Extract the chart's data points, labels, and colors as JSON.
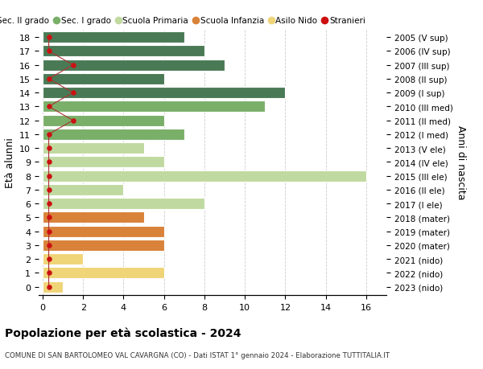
{
  "ages": [
    18,
    17,
    16,
    15,
    14,
    13,
    12,
    11,
    10,
    9,
    8,
    7,
    6,
    5,
    4,
    3,
    2,
    1,
    0
  ],
  "years": [
    "2005 (V sup)",
    "2006 (IV sup)",
    "2007 (III sup)",
    "2008 (II sup)",
    "2009 (I sup)",
    "2010 (III med)",
    "2011 (II med)",
    "2012 (I med)",
    "2013 (V ele)",
    "2014 (IV ele)",
    "2015 (III ele)",
    "2016 (II ele)",
    "2017 (I ele)",
    "2018 (mater)",
    "2019 (mater)",
    "2020 (mater)",
    "2021 (nido)",
    "2022 (nido)",
    "2023 (nido)"
  ],
  "bar_values": [
    7,
    8,
    9,
    6,
    12,
    11,
    6,
    7,
    5,
    6,
    16,
    4,
    8,
    5,
    6,
    6,
    2,
    6,
    1
  ],
  "bar_colors": [
    "#4a7a55",
    "#4a7a55",
    "#4a7a55",
    "#4a7a55",
    "#4a7a55",
    "#7aaf6a",
    "#7aaf6a",
    "#7aaf6a",
    "#c0d9a0",
    "#c0d9a0",
    "#c0d9a0",
    "#c0d9a0",
    "#c0d9a0",
    "#d9823a",
    "#d9823a",
    "#d9823a",
    "#f0d478",
    "#f0d478",
    "#f0d478"
  ],
  "stranieri_x": [
    0.3,
    0.3,
    1.5,
    0.3,
    1.5,
    0.3,
    1.5,
    0.3,
    0.3,
    0.3,
    0.3,
    0.3,
    0.3,
    0.3,
    0.3,
    0.3,
    0.3,
    0.3,
    0.3
  ],
  "legend_labels": [
    "Sec. II grado",
    "Sec. I grado",
    "Scuola Primaria",
    "Scuola Infanzia",
    "Asilo Nido",
    "Stranieri"
  ],
  "legend_colors": [
    "#4a7a55",
    "#7aaf6a",
    "#c0d9a0",
    "#d9823a",
    "#f0d478",
    "#cc1111"
  ],
  "xlabel_values": [
    0,
    2,
    4,
    6,
    8,
    10,
    12,
    14,
    16
  ],
  "xlim": [
    0,
    17
  ],
  "ylabel_left": "Età alunni",
  "ylabel_right": "Anni di nascita",
  "title": "Popolazione per età scolastica - 2024",
  "subtitle": "COMUNE DI SAN BARTOLOMEO VAL CAVARGNA (CO) - Dati ISTAT 1° gennaio 2024 - Elaborazione TUTTITALIA.IT",
  "bg_color": "#ffffff",
  "bar_height": 0.82,
  "grid_color": "#cccccc"
}
